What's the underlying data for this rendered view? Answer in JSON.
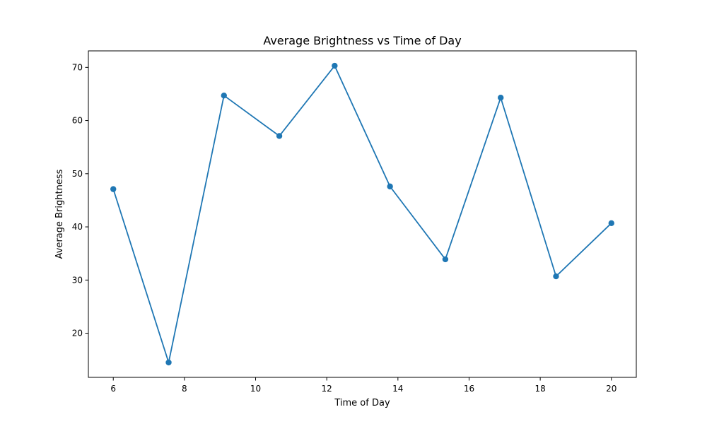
{
  "chart_data": {
    "type": "line",
    "title": "Average Brightness vs Time of Day",
    "xlabel": "Time of Day",
    "ylabel": "Average Brightness",
    "xlim": [
      5.3,
      20.7
    ],
    "ylim": [
      11.7,
      73.1
    ],
    "xticks": [
      6,
      8,
      10,
      12,
      14,
      16,
      18,
      20
    ],
    "yticks": [
      20,
      30,
      40,
      50,
      60,
      70
    ],
    "grid": false,
    "series": [
      {
        "color": "#1f77b4",
        "marker": "circle",
        "x": [
          6.0,
          7.556,
          9.111,
          10.667,
          12.222,
          13.778,
          15.333,
          16.889,
          18.444,
          20.0
        ],
        "y": [
          47.1,
          14.5,
          64.7,
          57.1,
          70.3,
          47.6,
          33.9,
          64.3,
          30.7,
          40.7
        ]
      }
    ]
  }
}
